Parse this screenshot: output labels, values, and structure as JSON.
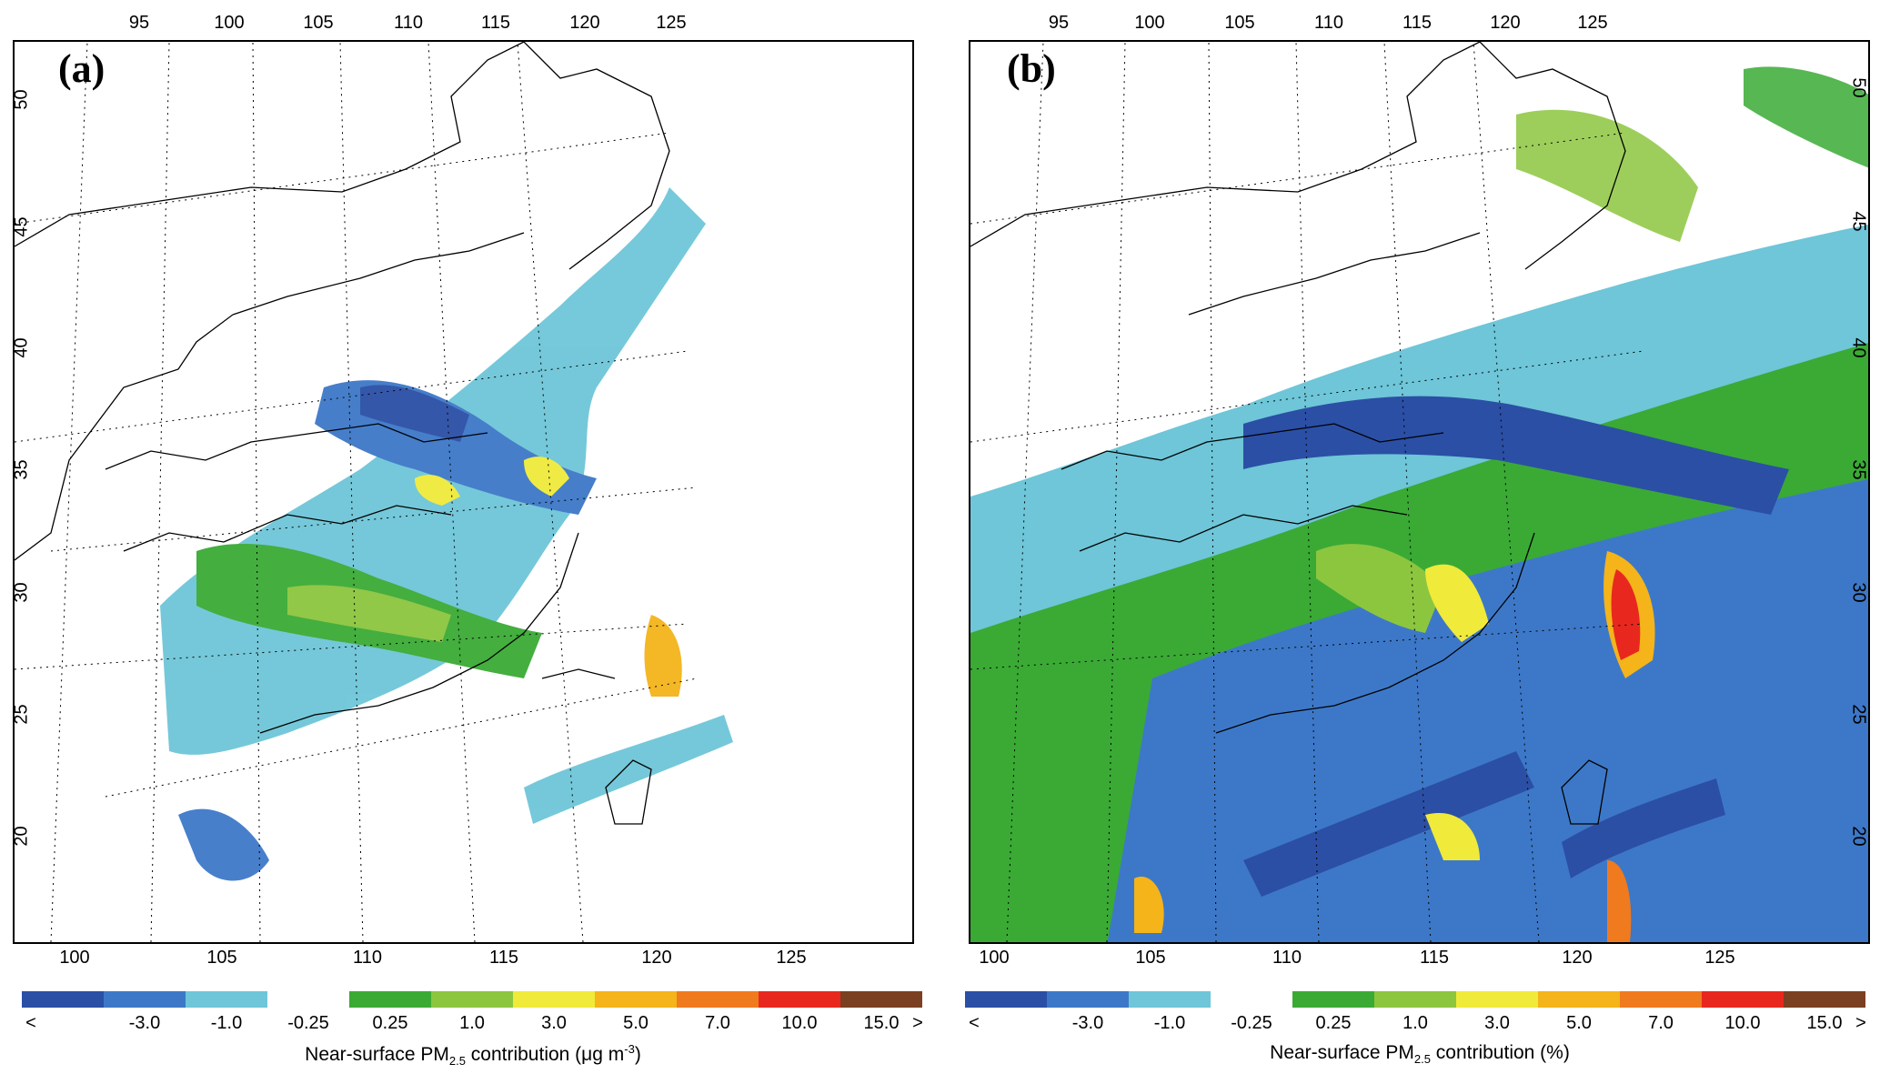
{
  "panels": [
    {
      "id": "a",
      "label": "(a)",
      "top_lon_ticks": [
        "95",
        "100",
        "105",
        "110",
        "115",
        "120",
        "125"
      ],
      "bottom_lon_ticks": [
        "100",
        "105",
        "110",
        "115",
        "120",
        "125"
      ],
      "lat_ticks": [
        "50",
        "45",
        "40",
        "35",
        "30",
        "25",
        "20"
      ],
      "lat_side": "left",
      "caption_pre": "Near-surface PM",
      "caption_sub": "2.5",
      "caption_post": " contribution (μg m",
      "caption_sup": "-3",
      "caption_end": ")"
    },
    {
      "id": "b",
      "label": "(b)",
      "top_lon_ticks": [
        "95",
        "100",
        "105",
        "110",
        "115",
        "120",
        "125"
      ],
      "bottom_lon_ticks": [
        "100",
        "105",
        "110",
        "115",
        "120",
        "125"
      ],
      "lat_ticks": [
        "50",
        "45",
        "40",
        "35",
        "30",
        "25",
        "20"
      ],
      "lat_side": "right",
      "caption_pre": "Near-surface PM",
      "caption_sub": "2.5",
      "caption_post": " contribution (%)",
      "caption_sup": "",
      "caption_end": ""
    }
  ],
  "colorbar": {
    "labels": [
      "<",
      "-3.0",
      "-1.0",
      "-0.25",
      "0.25",
      "1.0",
      "3.0",
      "5.0",
      "7.0",
      "10.0",
      "15.0",
      ">"
    ],
    "colors": [
      "#2b4fa5",
      "#3d78c8",
      "#6ec6d8",
      "#ffffff",
      "#3aaa35",
      "#8cc63f",
      "#f0ea3a",
      "#f4b41a",
      "#f07a1e",
      "#e8281e",
      "#7b3f21"
    ]
  }
}
